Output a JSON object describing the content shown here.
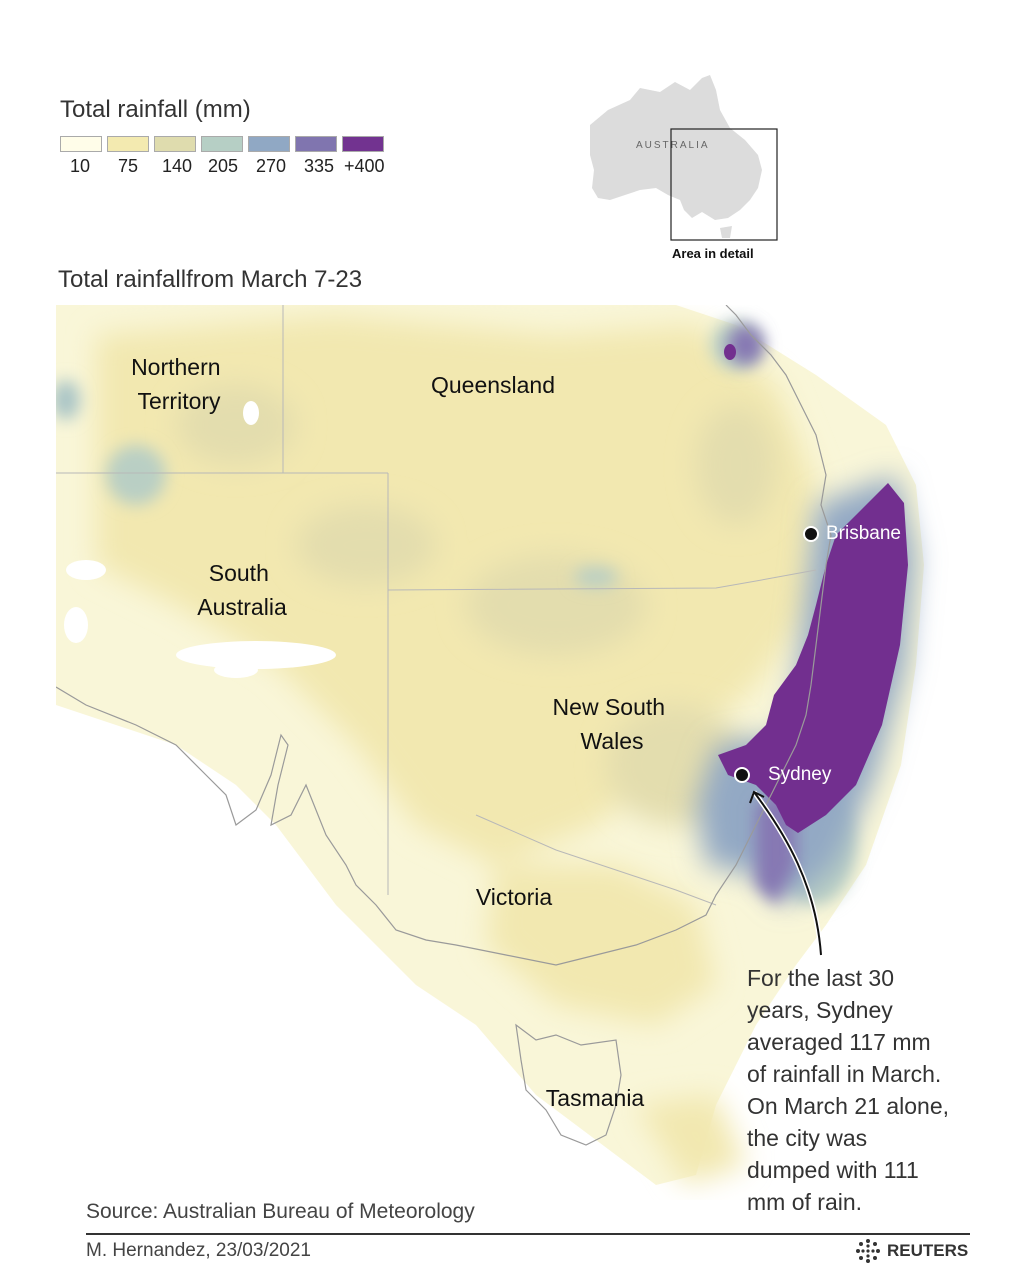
{
  "legend": {
    "title": "Total rainfall (mm)",
    "labels": [
      "10",
      "75",
      "140",
      "205",
      "270",
      "335",
      "+400"
    ],
    "colors": [
      "#fffde9",
      "#f3eab0",
      "#dfdcae",
      "#b6cfc5",
      "#90a8c4",
      "#8075af",
      "#723390"
    ]
  },
  "inset": {
    "country_label": "AUSTRALIA",
    "caption": "Area in detail"
  },
  "map": {
    "title": "Total rainfallfrom March 7-23",
    "regions": {
      "northern_territory": [
        "Northern",
        "Territory"
      ],
      "queensland": "Queensland",
      "south_australia": [
        "South",
        "Australia"
      ],
      "new_south_wales": [
        "New South",
        "Wales"
      ],
      "victoria": "Victoria",
      "tasmania": "Tasmania"
    },
    "cities": {
      "brisbane": "Brisbane",
      "sydney": "Sydney"
    }
  },
  "annotation": {
    "lines": [
      "For the last 30",
      "years, Sydney",
      "averaged 117 mm",
      "of rainfall in March.",
      "On March 21 alone,",
      "the city was",
      "dumped with 111",
      "mm of rain."
    ]
  },
  "footer": {
    "source": "Source: Australian Bureau of Meteorology",
    "credit": "M. Hernandez, 23/03/2021",
    "brand": "REUTERS"
  }
}
